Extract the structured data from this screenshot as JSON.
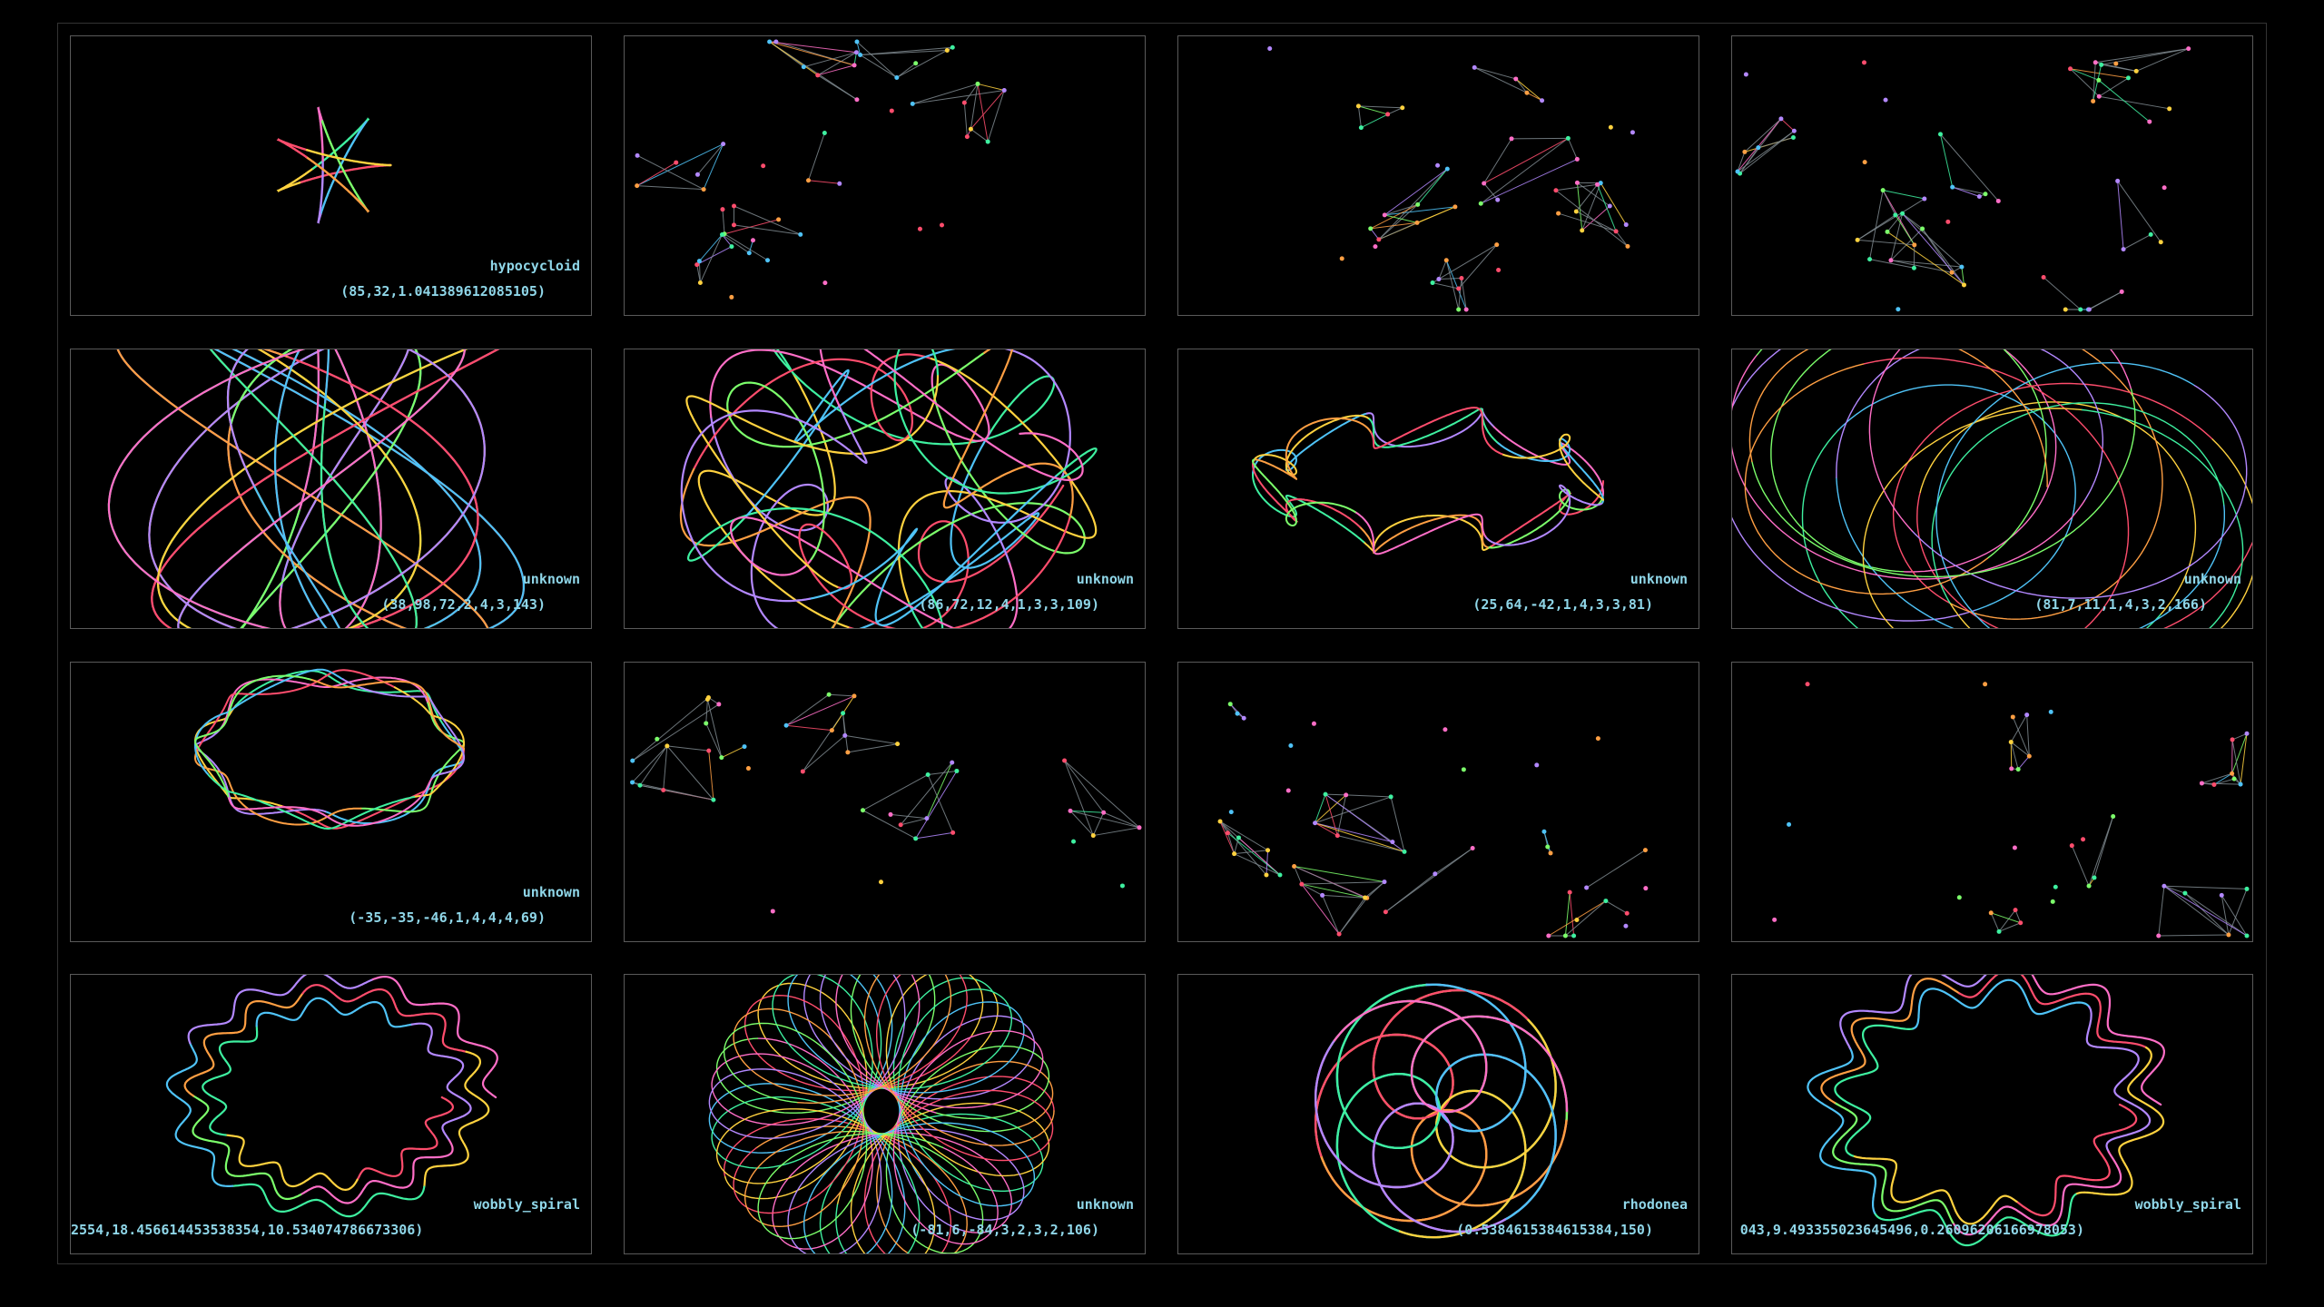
{
  "panels": [
    {
      "kind": "curve",
      "name": "hypocycloid",
      "params": "(85,32,1.041389612085105)"
    },
    {
      "kind": "network",
      "name": "",
      "params": ""
    },
    {
      "kind": "network",
      "name": "",
      "params": ""
    },
    {
      "kind": "network",
      "name": "",
      "params": ""
    },
    {
      "kind": "curve",
      "name": "unknown",
      "params": "(38,98,72,2,4,3,143)"
    },
    {
      "kind": "curve",
      "name": "unknown",
      "params": "(86,72,12,4,1,3,3,109)"
    },
    {
      "kind": "curve",
      "name": "unknown",
      "params": "(25,64,-42,1,4,3,3,81)"
    },
    {
      "kind": "curve",
      "name": "unknown",
      "params": "(81,7,11,1,4,3,2,166)"
    },
    {
      "kind": "curve",
      "name": "unknown",
      "params": "(-35,-35,-46,1,4,4,4,69)"
    },
    {
      "kind": "network",
      "name": "",
      "params": ""
    },
    {
      "kind": "network",
      "name": "",
      "params": ""
    },
    {
      "kind": "network",
      "name": "",
      "params": ""
    },
    {
      "kind": "curve",
      "name": "wobbly_spiral",
      "params": "2554,18.456614453538354,10.534074786673306)"
    },
    {
      "kind": "curve",
      "name": "unknown",
      "params": "(-81,6,-84,3,2,3,2,106)"
    },
    {
      "kind": "curve",
      "name": "rhodonea",
      "params": "(0.5384615384615384,150)"
    },
    {
      "kind": "curve",
      "name": "wobbly_spiral",
      "params": "043,9.493355023645496,0.2609620616697805З)"
    }
  ],
  "palette": [
    "#ff4d6d",
    "#ffd23f",
    "#3ef0a0",
    "#4fc3f7",
    "#b388ff",
    "#ff6ec7",
    "#7cff6b",
    "#ff9f43"
  ]
}
